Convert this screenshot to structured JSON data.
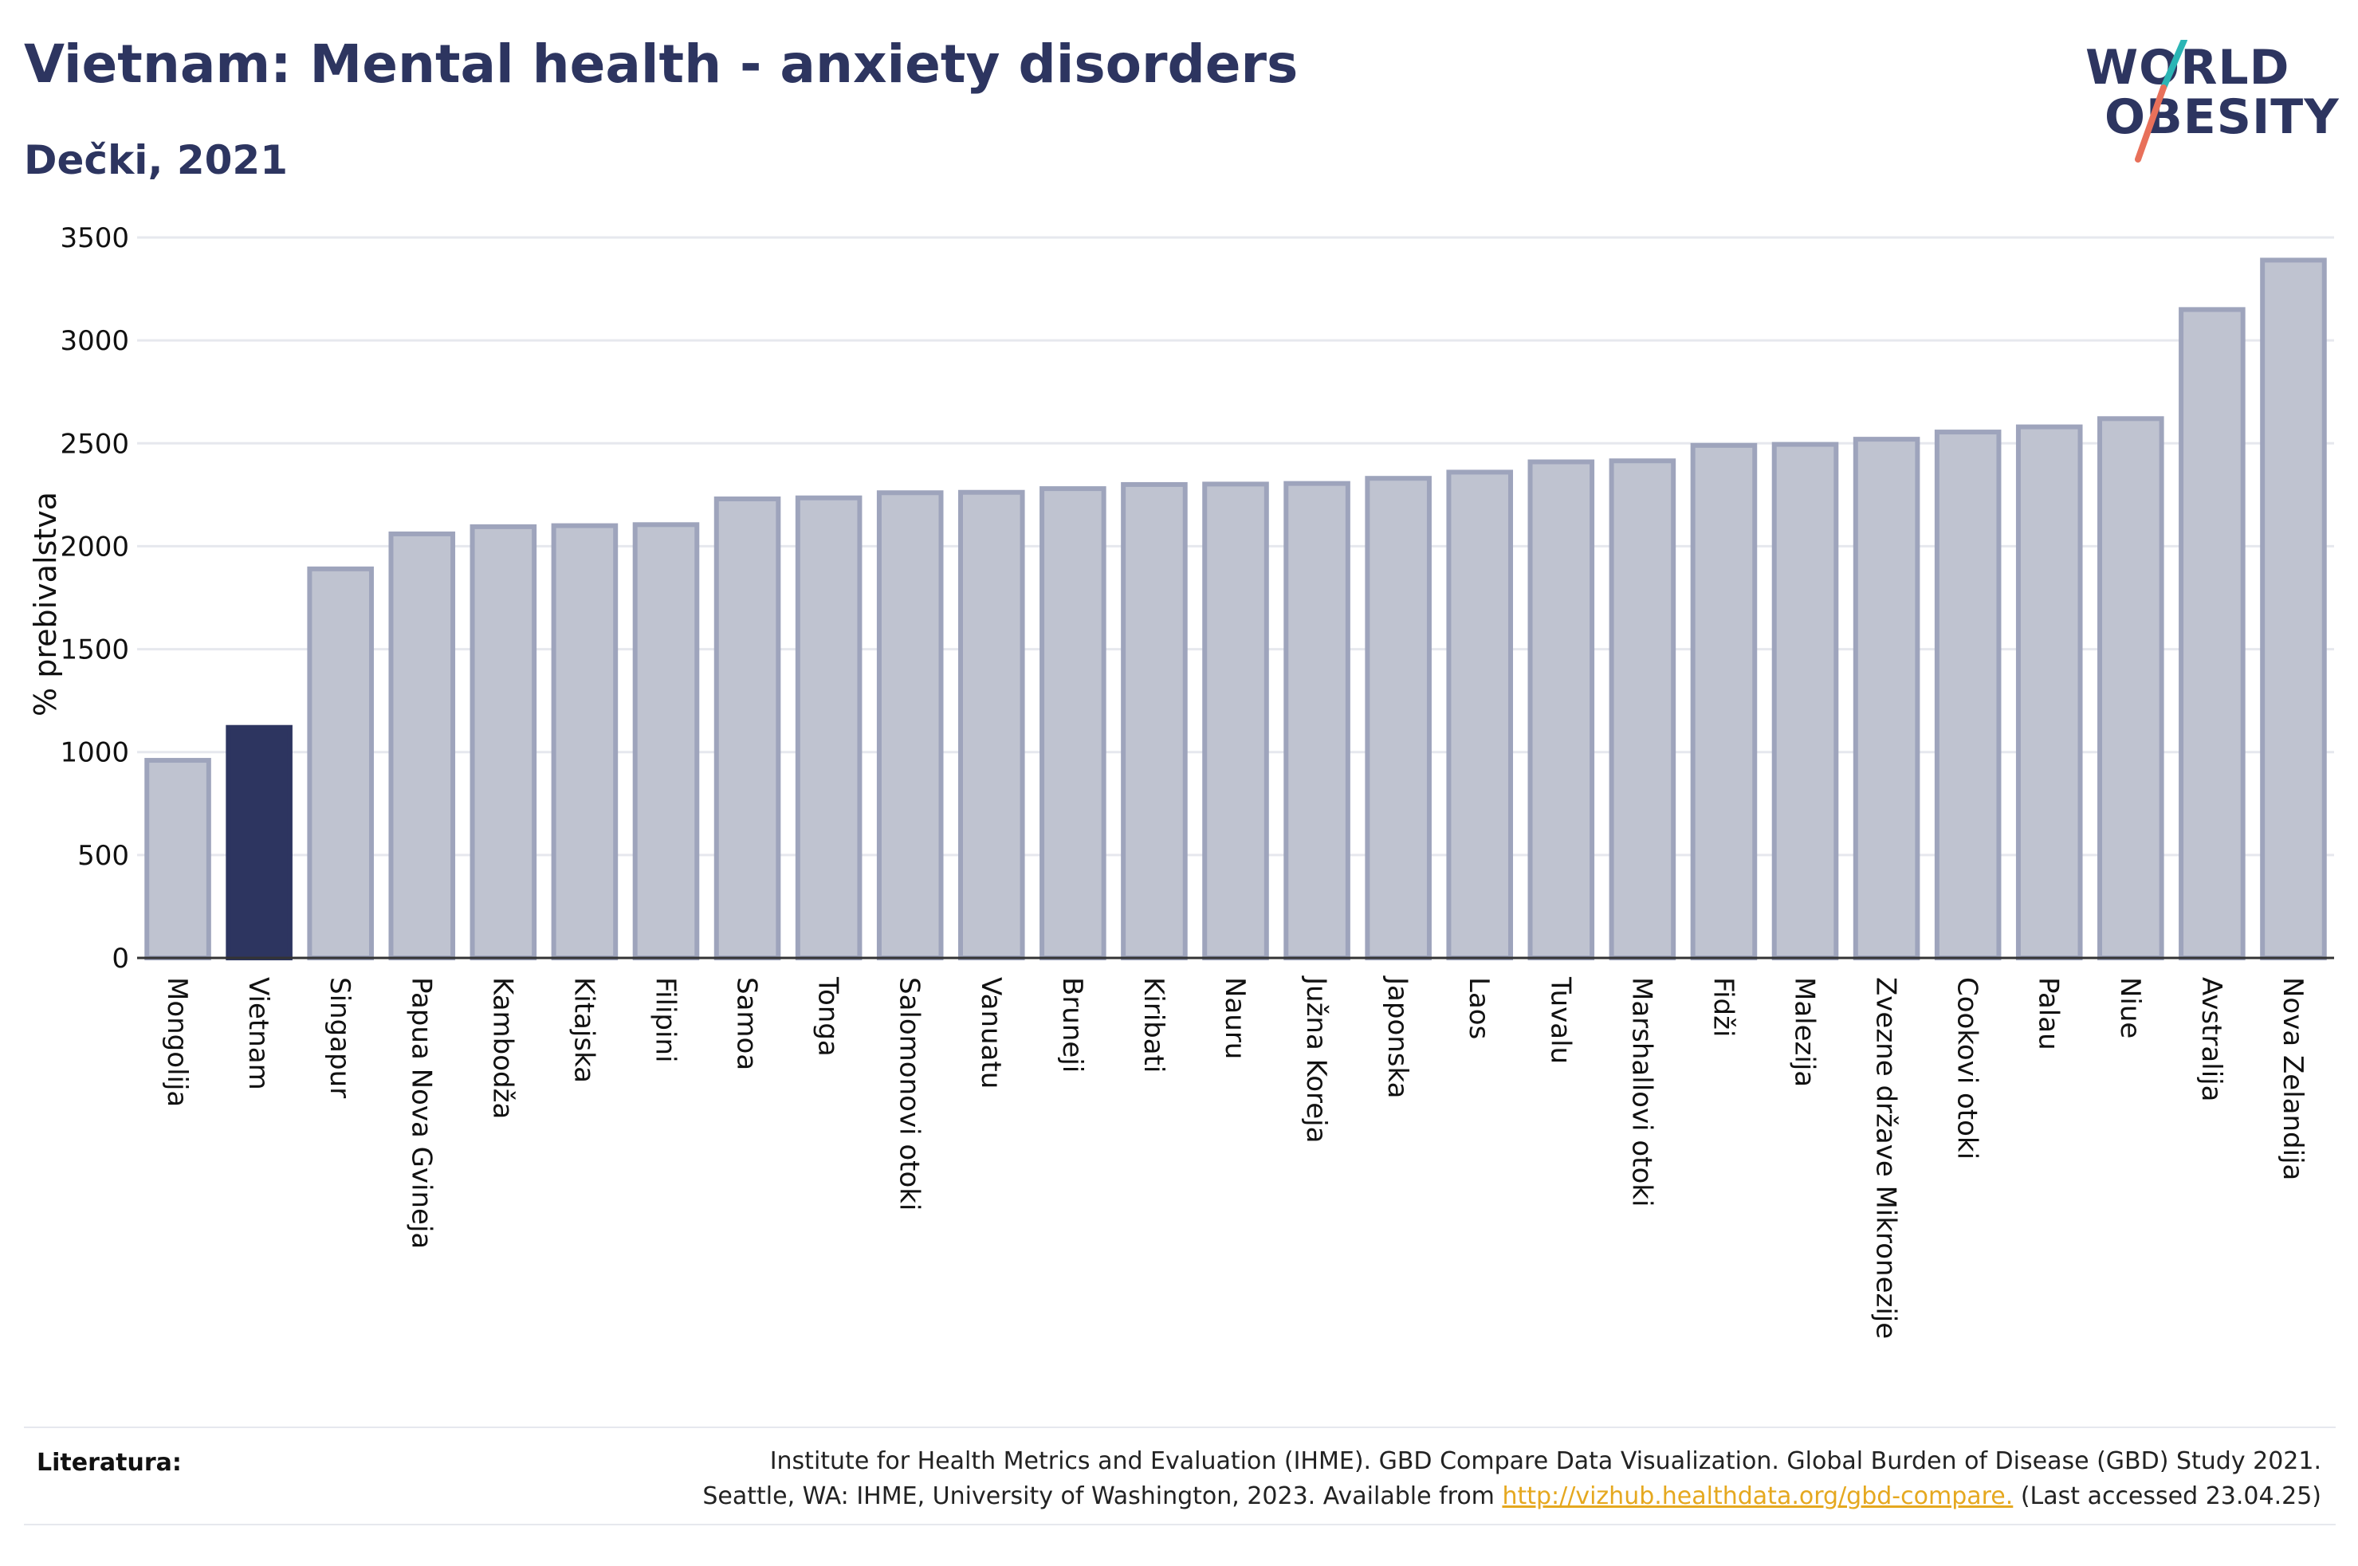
{
  "header": {
    "title": "Vietnam: Mental health - anxiety disorders",
    "subtitle": "Dečki, 2021"
  },
  "logo": {
    "line1": "WORLD",
    "line2": "OBESITY",
    "colors": {
      "text": "#2d3560",
      "slash_top": "#2bb5b5",
      "slash_bottom": "#e8705a"
    }
  },
  "chart_data": {
    "type": "bar",
    "title": "Vietnam: Mental health - anxiety disorders",
    "subtitle": "Dečki, 2021",
    "ylabel": "% prebivalstva",
    "xlabel": "",
    "ylim": [
      0,
      3500
    ],
    "yticks": [
      0,
      500,
      1000,
      1500,
      2000,
      2500,
      3000,
      3500
    ],
    "grid": true,
    "highlight": "Vietnam",
    "colors": {
      "bar": "#bfc3d0",
      "bar_edge": "#9ea4bc",
      "highlight": "#2d3560",
      "grid": "#e6e8ee",
      "axis": "#333333"
    },
    "categories": [
      "Mongolija",
      "Vietnam",
      "Singapur",
      "Papua Nova Gvineja",
      "Kambodža",
      "Kitajska",
      "Filipini",
      "Samoa",
      "Tonga",
      "Salomonovi otoki",
      "Vanuatu",
      "Bruneji",
      "Kiribati",
      "Nauru",
      "Južna Koreja",
      "Japonska",
      "Laos",
      "Tuvalu",
      "Marshallovi otoki",
      "Fidži",
      "Malezija",
      "Zvezne države Mikronezije",
      "Cookovi otoki",
      "Palau",
      "Niue",
      "Avstralija",
      "Nova Zelandija"
    ],
    "values": [
      960,
      1120,
      1890,
      2060,
      2095,
      2100,
      2105,
      2230,
      2235,
      2260,
      2262,
      2280,
      2300,
      2302,
      2305,
      2330,
      2360,
      2410,
      2415,
      2490,
      2495,
      2520,
      2555,
      2580,
      2620,
      3150,
      3390
    ]
  },
  "footer": {
    "label": "Literatura:",
    "line1": "Institute for Health Metrics and Evaluation (IHME). GBD Compare Data Visualization. Global Burden of Disease (GBD) Study 2021.",
    "line2_pre": "Seattle, WA: IHME, University of Washington, 2023. Available from ",
    "link": "http://vizhub.healthdata.org/gbd-compare.",
    "line2_post": " (Last accessed 23.04.25)"
  }
}
